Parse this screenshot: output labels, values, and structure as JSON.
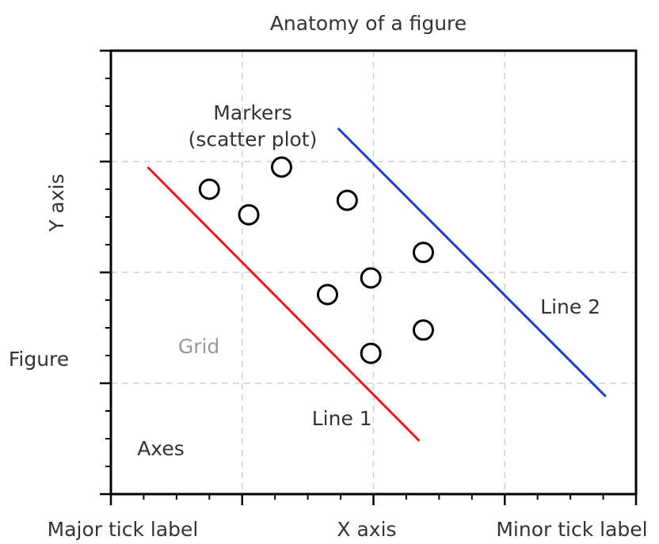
{
  "chart_data": {
    "type": "scatter",
    "title": "Anatomy of a figure",
    "xlabel": "X axis",
    "ylabel": "Y axis",
    "xlim": [
      0,
      4
    ],
    "ylim": [
      0,
      4
    ],
    "grid": true,
    "x_major_ticks": [
      0,
      1,
      2,
      3,
      4
    ],
    "y_major_ticks": [
      0,
      1,
      2,
      3,
      4
    ],
    "minor_tick_step": 0.25,
    "tick_labels_shown": false,
    "series": [
      {
        "kind": "scatter",
        "marker": "o",
        "facecolor": "none",
        "edgecolor": "#000000",
        "x": [
          0.75,
          1.05,
          1.3,
          1.8,
          1.65,
          1.98,
          2.38,
          2.38,
          1.98
        ],
        "y": [
          2.75,
          2.52,
          2.95,
          2.65,
          1.8,
          1.95,
          2.18,
          1.48,
          1.27
        ]
      },
      {
        "kind": "line",
        "color": "#e8191b",
        "x": [
          0.28,
          2.35
        ],
        "y": [
          2.95,
          0.48
        ]
      },
      {
        "kind": "line",
        "color": "#1a3fc8",
        "x": [
          1.73,
          3.77
        ],
        "y": [
          3.3,
          0.88
        ]
      }
    ],
    "annotations": [
      {
        "text": "Markers",
        "x": 1.08,
        "y": 3.43
      },
      {
        "text": "(scatter plot)",
        "x": 1.08,
        "y": 3.19
      },
      {
        "text": "Line 1",
        "x": 1.76,
        "y": 0.67
      },
      {
        "text": "Line 2",
        "x": 3.5,
        "y": 1.68
      },
      {
        "text": "Grid",
        "x": 0.67,
        "y": 1.32
      },
      {
        "text": "Axes",
        "x": 0.38,
        "y": 0.4
      }
    ],
    "outside_labels": {
      "figure": "Figure",
      "major_tick_label": "Major tick label",
      "minor_tick_label": "Minor tick label"
    },
    "colors": {
      "line1": "#e8191b",
      "line2": "#1a3fc8",
      "grid": "#d0d0d0",
      "text": "#333333",
      "grid_label": "#9a9a9a"
    }
  }
}
